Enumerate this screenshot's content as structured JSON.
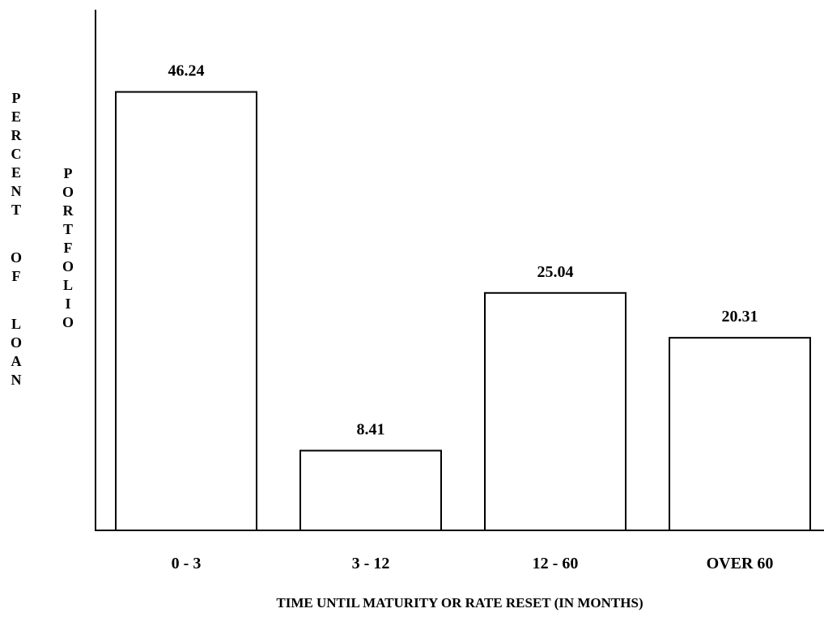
{
  "chart_data": {
    "type": "bar",
    "categories": [
      "0 - 3",
      "3 - 12",
      "12 - 60",
      "OVER 60"
    ],
    "values": [
      46.24,
      8.41,
      25.04,
      20.31
    ],
    "data_labels": [
      "46.24",
      "8.41",
      "25.04",
      "20.31"
    ],
    "title": "",
    "xlabel": "TIME UNTIL MATURITY OR RATE RESET (IN MONTHS)",
    "ylabel_lines": [
      "PERCENT OF LOAN",
      "PORTFOLIO"
    ],
    "ylim": [
      0,
      55
    ],
    "grid": false,
    "legend": "none",
    "colors": {
      "bar_fill": "#ffffff",
      "bar_stroke": "#000000",
      "axis": "#000000"
    }
  }
}
